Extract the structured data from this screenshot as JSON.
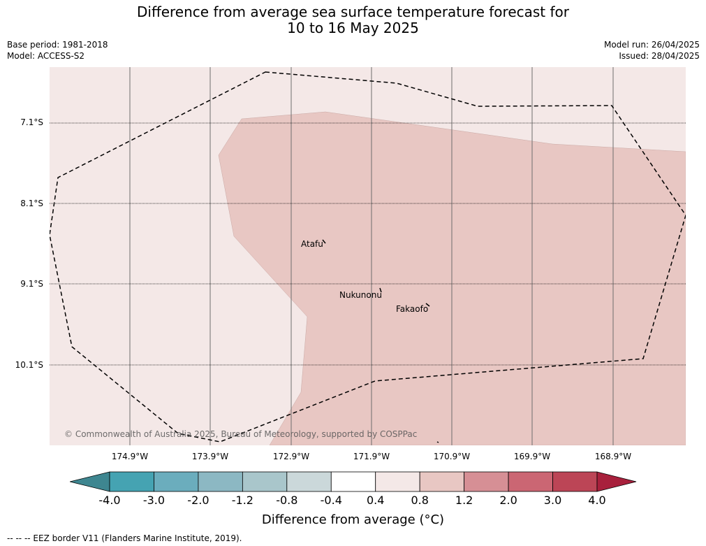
{
  "title": {
    "line1": "Difference from average sea surface temperature forecast for",
    "line2": "10 to 16 May 2025"
  },
  "meta": {
    "base_period": "Base period: 1981-2018",
    "model": "Model: ACCESS-S2",
    "model_run": "Model run: 26/04/2025",
    "issued": "Issued: 28/04/2025"
  },
  "map": {
    "latitude_labels": [
      "7.1°S",
      "8.1°S",
      "9.1°S",
      "10.1°S"
    ],
    "longitude_labels": [
      "174.9°W",
      "173.9°W",
      "172.9°W",
      "171.9°W",
      "170.9°W",
      "169.9°W",
      "168.9°W"
    ],
    "islands": [
      "Atafu",
      "Nukunonu",
      "Fakaofo"
    ],
    "copyright": "© Commonwealth of Australia 2025, Bureau of Meteorology, supported by COSPPac",
    "background_category": "0.4 to 0.8",
    "warm_region_category": "0.8 to 1.2"
  },
  "colorbar": {
    "ticks": [
      "-4.0",
      "-3.0",
      "-2.0",
      "-1.2",
      "-0.8",
      "-0.4",
      "0.4",
      "0.8",
      "1.2",
      "2.0",
      "3.0",
      "4.0"
    ],
    "colors": [
      "#3e8690",
      "#45a3b2",
      "#6badbd",
      "#8cb8c3",
      "#a9c6cb",
      "#cbd8da",
      "#ffffff",
      "#f4e8e7",
      "#e8c7c3",
      "#d68f95",
      "#cb6673",
      "#bc4556",
      "#a8203c"
    ],
    "label": "Difference from average (°C)"
  },
  "legend": {
    "footer": "--  --  -- EEZ border V11 (Flanders Marine Institute, 2019)."
  }
}
